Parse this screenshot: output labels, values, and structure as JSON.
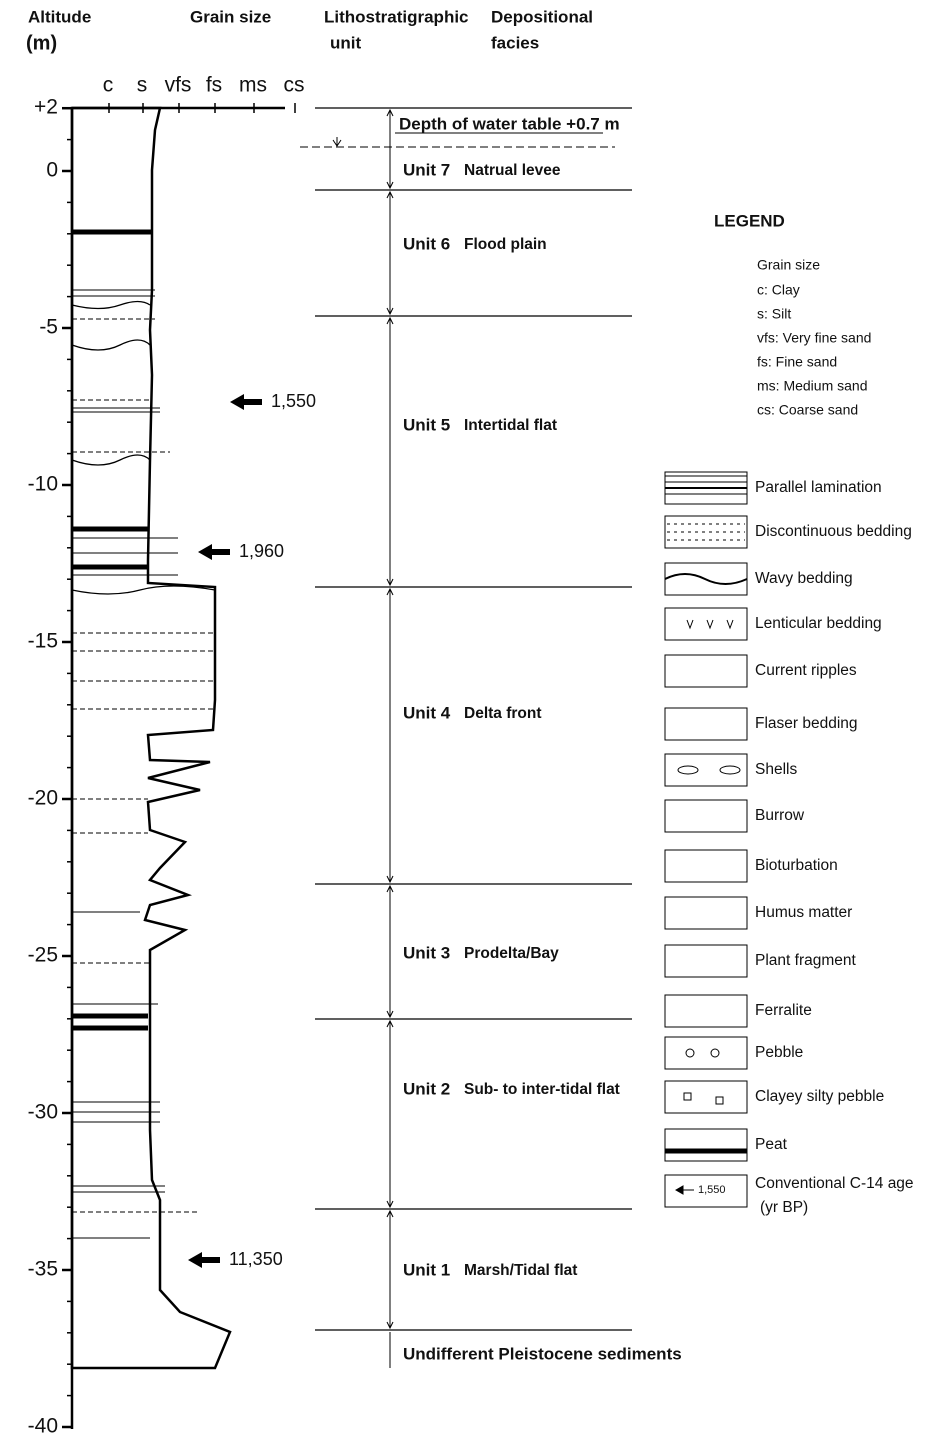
{
  "header": {
    "altitude": [
      "Altitude",
      "(m)"
    ],
    "grain_size": "Grain size",
    "lithostratigraphic": [
      "Lithostratigraphic",
      "unit"
    ],
    "facies": [
      "Depositional",
      "facies"
    ]
  },
  "altitude_ticks": [
    {
      "value": 2,
      "label": "+2"
    },
    0,
    -5,
    -10,
    -15,
    -20,
    -25,
    -30,
    -35,
    -40
  ],
  "grain_size_classes": [
    "c",
    "s",
    "vfs",
    "fs",
    "ms",
    "cs"
  ],
  "water_table": "Depth of water table +0.7 m",
  "units": [
    {
      "name": "Unit 7",
      "facies": "Natrual levee"
    },
    {
      "name": "Unit 6",
      "facies": "Flood plain"
    },
    {
      "name": "Unit 5",
      "facies": "Intertidal flat"
    },
    {
      "name": "Unit 4",
      "facies": "Delta front"
    },
    {
      "name": "Unit 3",
      "facies": "Prodelta/Bay"
    },
    {
      "name": "Unit 2",
      "facies": "Sub- to inter-tidal flat"
    },
    {
      "name": "Unit 1",
      "facies": "Marsh/Tidal flat"
    }
  ],
  "pleistocene": "Undifferent Pleistocene sediments",
  "c14_ages": [
    "1,550",
    "1,960",
    "11,350"
  ],
  "legend": {
    "title": "LEGEND",
    "grain_size_title": "Grain size",
    "grain_size_items": [
      "c: Clay",
      "s: Silt",
      "vfs: Very fine sand",
      "fs: Fine sand",
      "ms: Medium sand",
      "cs: Coarse sand"
    ],
    "symbols": [
      "Parallel lamination",
      "Discontinuous bedding",
      "Wavy bedding",
      "Lenticular bedding",
      "Current ripples",
      "Flaser bedding",
      "Shells",
      "Burrow",
      "Bioturbation",
      "Humus matter",
      "Plant fragment",
      "Ferralite",
      "Pebble",
      "Clayey silty pebble",
      "Peat"
    ],
    "c14": {
      "sample": "1,550",
      "label": [
        "Conventional C-14 age",
        "(yr BP)"
      ]
    }
  }
}
